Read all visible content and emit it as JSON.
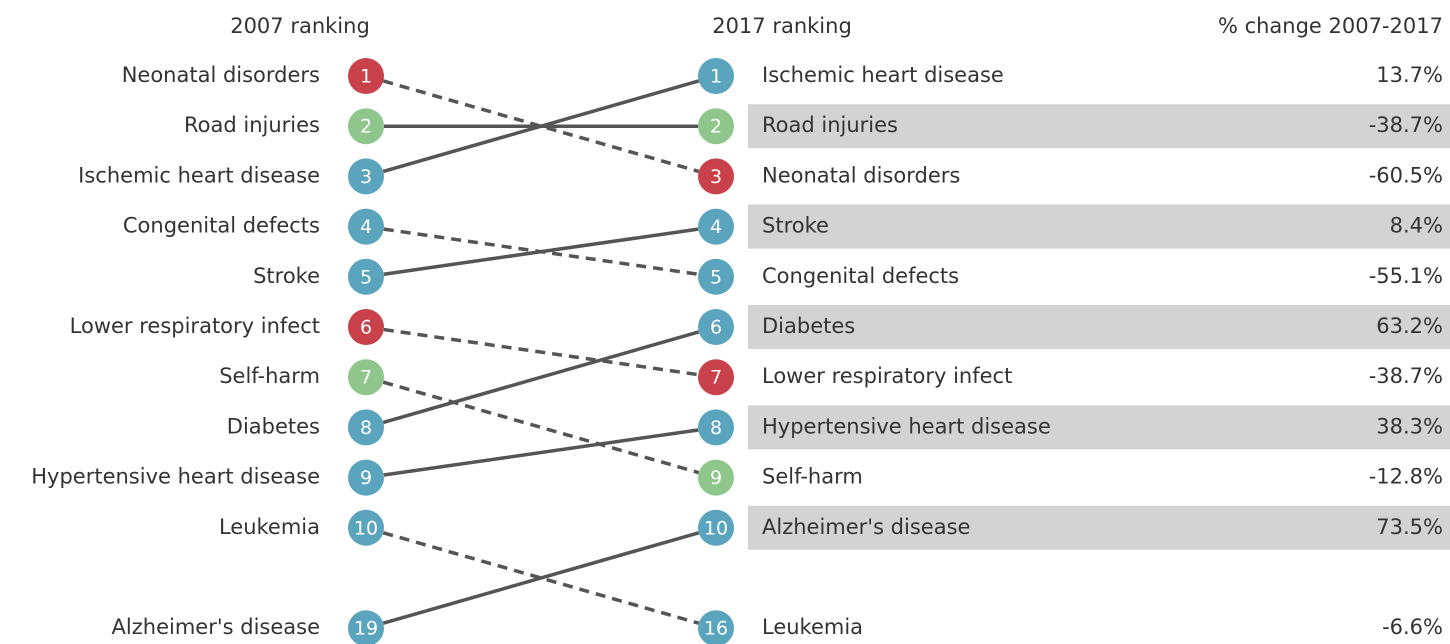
{
  "chart_data": {
    "type": "slope",
    "left": {
      "title": "2007 ranking",
      "labels": [
        "Neonatal disorders",
        "Road injuries",
        "Ischemic heart disease",
        "Congenital defects",
        "Stroke",
        "Lower respiratory infect",
        "Self-harm",
        "Diabetes",
        "Hypertensive heart disease",
        "Leukemia",
        "Alzheimer's disease"
      ],
      "ranks": [
        1,
        2,
        3,
        4,
        5,
        6,
        7,
        8,
        9,
        10,
        19
      ],
      "colors": [
        "#c8414b",
        "#8fc68c",
        "#5aa5bd",
        "#5aa5bd",
        "#5aa5bd",
        "#c8414b",
        "#8fc68c",
        "#5aa5bd",
        "#5aa5bd",
        "#5aa5bd",
        "#5aa5bd"
      ]
    },
    "right": {
      "title": "2017 ranking",
      "labels": [
        "Ischemic heart disease",
        "Road injuries",
        "Neonatal disorders",
        "Stroke",
        "Congenital defects",
        "Diabetes",
        "Lower respiratory infect",
        "Hypertensive heart disease",
        "Self-harm",
        "Alzheimer's disease",
        "Leukemia"
      ],
      "ranks": [
        1,
        2,
        3,
        4,
        5,
        6,
        7,
        8,
        9,
        10,
        16
      ]
    },
    "change": {
      "title": "% change 2007-2017",
      "labels": [
        "13.7%",
        "-38.7%",
        "-60.5%",
        "8.4%",
        "-55.1%",
        "63.2%",
        "-38.7%",
        "38.3%",
        "-12.8%",
        "73.5%",
        "-6.6%"
      ]
    }
  }
}
